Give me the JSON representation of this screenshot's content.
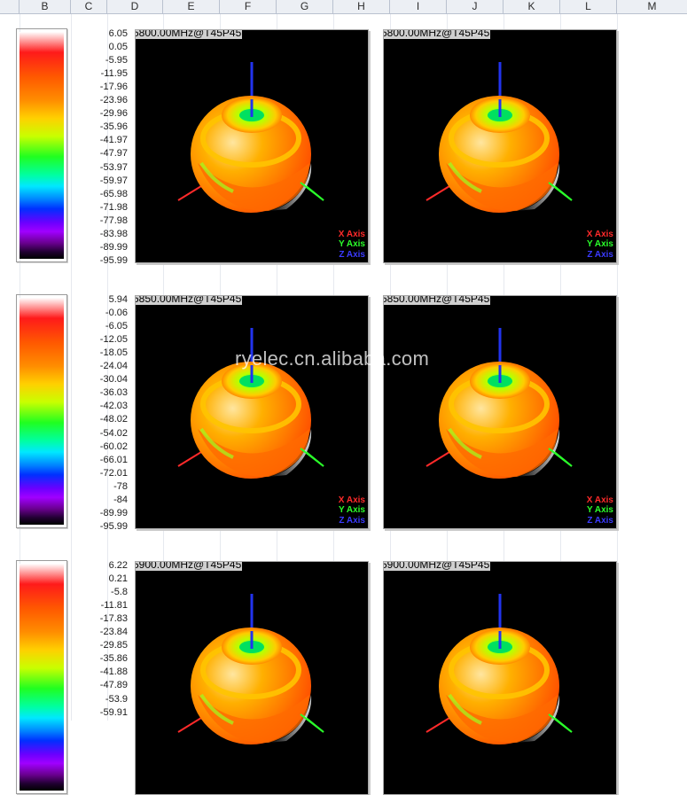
{
  "columns": [
    "B",
    "C",
    "D",
    "E",
    "F",
    "G",
    "H",
    "I",
    "J",
    "K",
    "L",
    "M"
  ],
  "blocks": [
    {
      "scale": [
        "6.05",
        "0.05",
        "-5.95",
        "-11.95",
        "-17.96",
        "-23.96",
        "-29.96",
        "-35.96",
        "-41.97",
        "-47.97",
        "-53.97",
        "-59.97",
        "-65.98",
        "-71.98",
        "-77.98",
        "-83.98",
        "-89.99",
        "-95.99"
      ],
      "plot_title": "5800.00MHz@T45P45"
    },
    {
      "scale": [
        "5.94",
        "-0.06",
        "-6.05",
        "-12.05",
        "-18.05",
        "-24.04",
        "-30.04",
        "-36.03",
        "-42.03",
        "-48.02",
        "-54.02",
        "-60.02",
        "-66.01",
        "-72.01",
        "-78",
        "-84",
        "-89.99",
        "-95.99"
      ],
      "plot_title": "5850.00MHz@T45P45"
    },
    {
      "scale": [
        "6.22",
        "0.21",
        "-5.8",
        "-11.81",
        "-17.83",
        "-23.84",
        "-29.85",
        "-35.86",
        "-41.88",
        "-47.89",
        "-53.9",
        "-59.91"
      ],
      "plot_title": "5900.00MHz@T45P45"
    }
  ],
  "axis_labels": {
    "x": "X Axis",
    "y": "Y Axis",
    "z": "Z Axis"
  },
  "watermark": "ryelec.cn.alibaba.com",
  "colors": {
    "x_axis": "#ff2a2a",
    "y_axis": "#2aff2a",
    "z_axis": "#2233ee"
  }
}
